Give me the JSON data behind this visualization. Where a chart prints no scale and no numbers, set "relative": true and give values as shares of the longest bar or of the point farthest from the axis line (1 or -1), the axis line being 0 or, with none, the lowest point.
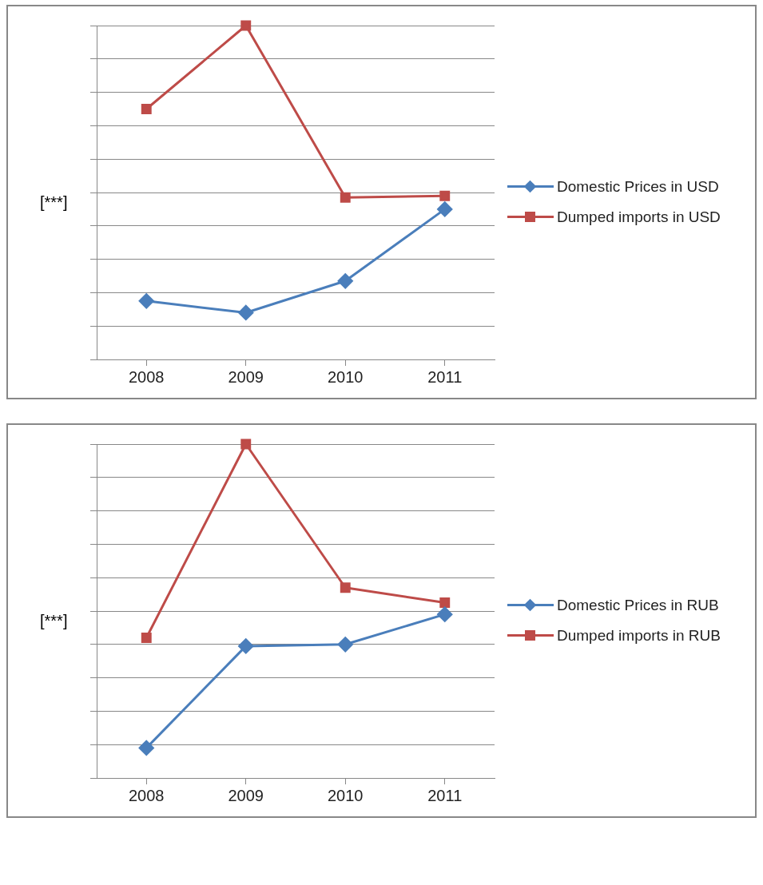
{
  "chart_data": [
    {
      "type": "line",
      "ylabel": "[***]",
      "relative": true,
      "grid": "y",
      "legend": "right",
      "tick_labels": "x",
      "line_style": "solid",
      "categories": [
        "2008",
        "2009",
        "2010",
        "2011"
      ],
      "series": [
        {
          "name": "Domestic Prices in USD",
          "color": "#4a7ebb",
          "marker": "diamond",
          "values": [
            0.175,
            0.14,
            0.235,
            0.45
          ]
        },
        {
          "name": "Dumped imports in USD",
          "color": "#be4b48",
          "marker": "square",
          "values": [
            0.75,
            1,
            0.485,
            0.49
          ]
        }
      ]
    },
    {
      "type": "line",
      "ylabel": "[***]",
      "relative": true,
      "grid": "y",
      "legend": "right",
      "tick_labels": "x",
      "line_style": "solid",
      "categories": [
        "2008",
        "2009",
        "2010",
        "2011"
      ],
      "series": [
        {
          "name": "Domestic Prices in RUB",
          "color": "#4a7ebb",
          "marker": "diamond",
          "values": [
            0.09,
            0.395,
            0.4,
            0.49
          ]
        },
        {
          "name": "Dumped imports in RUB",
          "color": "#be4b48",
          "marker": "square",
          "values": [
            0.42,
            1,
            0.57,
            0.525
          ]
        }
      ]
    }
  ]
}
